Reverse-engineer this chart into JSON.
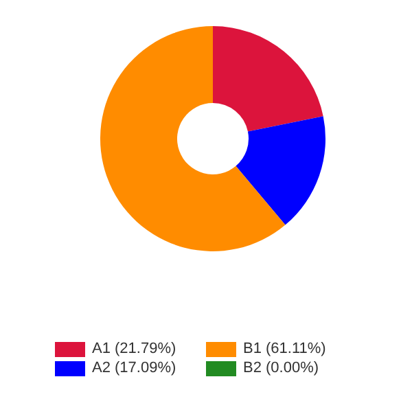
{
  "chart_data": {
    "type": "donut",
    "categories": [
      "A1 (21.79%)",
      "A2 (17.09%)",
      "B1 (61.11%)",
      "B2 (0.00%)"
    ],
    "values": [
      21.79,
      17.09,
      61.11,
      0.0
    ],
    "colors": [
      "#dc143c",
      "#0000ff",
      "#ff8c00",
      "#228b22"
    ],
    "legend": "bottom"
  }
}
